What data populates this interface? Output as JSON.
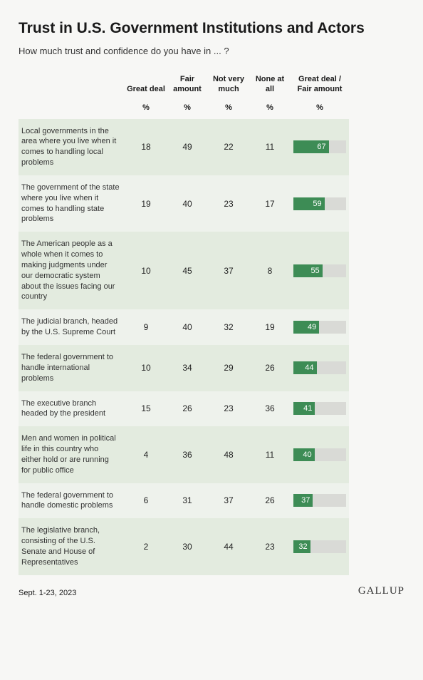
{
  "title": "Trust in U.S. Government Institutions and Actors",
  "subtitle": "How much trust and confidence do you have in ... ?",
  "date": "Sept. 1-23, 2023",
  "brand": "GALLUP",
  "columns": [
    "Great deal",
    "Fair amount",
    "Not very much",
    "None at all",
    "Great deal / Fair amount"
  ],
  "unit": "%",
  "bar_max": 100,
  "colors": {
    "page_bg": "#f7f7f5",
    "row_even": "#e3ebdf",
    "row_odd": "#eef2ec",
    "bar_fill": "#3d8c55",
    "bar_track": "#d9dad6",
    "bar_label_text": "#ffffff",
    "text": "#1a1a1a"
  },
  "typography": {
    "title_fontsize": 21,
    "subtitle_fontsize": 13,
    "header_fontsize": 11,
    "row_label_fontsize": 11,
    "value_fontsize": 12,
    "bar_label_fontsize": 11
  },
  "rows": [
    {
      "label": "Local governments in the area where you live when it comes to handling local problems",
      "values": [
        18,
        49,
        22,
        11
      ],
      "combined": 67
    },
    {
      "label": "The government of the state where you live when it comes to handling state problems",
      "values": [
        19,
        40,
        23,
        17
      ],
      "combined": 59
    },
    {
      "label": "The American people as a whole when it comes to making judgments under our democratic system about the issues facing our country",
      "values": [
        10,
        45,
        37,
        8
      ],
      "combined": 55
    },
    {
      "label": "The judicial branch, headed by the U.S. Supreme Court",
      "values": [
        9,
        40,
        32,
        19
      ],
      "combined": 49
    },
    {
      "label": "The federal government to handle international problems",
      "values": [
        10,
        34,
        29,
        26
      ],
      "combined": 44
    },
    {
      "label": "The executive branch headed by the president",
      "values": [
        15,
        26,
        23,
        36
      ],
      "combined": 41
    },
    {
      "label": "Men and women in political life in this country who either hold or are running for public office",
      "values": [
        4,
        36,
        48,
        11
      ],
      "combined": 40
    },
    {
      "label": "The federal government to handle domestic problems",
      "values": [
        6,
        31,
        37,
        26
      ],
      "combined": 37
    },
    {
      "label": "The legislative branch, consisting of the U.S. Senate and House of Representatives",
      "values": [
        2,
        30,
        44,
        23
      ],
      "combined": 32
    }
  ]
}
